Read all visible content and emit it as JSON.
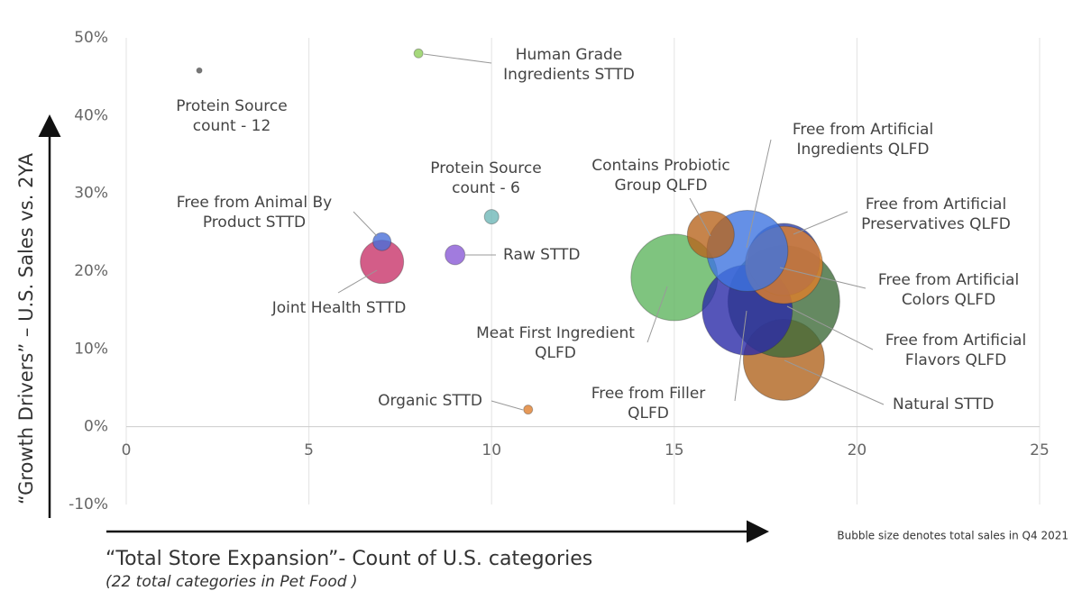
{
  "chart_data": {
    "type": "bubble",
    "y_label": "“Growth Drivers” – U.S. Sales vs. 2YA",
    "x_label": "“Total Store Expansion”- Count of U.S. categories",
    "subtitle": "(22 total categories in Pet Food )",
    "note": "Bubble size denotes total sales in Q4 2021",
    "xlim": [
      0,
      25
    ],
    "xticks": [
      0,
      5,
      10,
      15,
      20,
      25
    ],
    "ylim": [
      -10,
      50
    ],
    "yticks": [
      {
        "value": -10,
        "label": "-10%"
      },
      {
        "value": 0,
        "label": "0%"
      },
      {
        "value": 10,
        "label": "10%"
      },
      {
        "value": 20,
        "label": "20%"
      },
      {
        "value": 30,
        "label": "30%"
      },
      {
        "value": 40,
        "label": "40%"
      },
      {
        "value": 50,
        "label": "50%"
      }
    ],
    "grid": true,
    "points": [
      {
        "label": [
          "Meat First Ingredient",
          "QLFD"
        ],
        "x": 15,
        "y": 19.2,
        "size": 48,
        "color": "#5fb55f"
      },
      {
        "label": [
          "Natural STTD"
        ],
        "x": 18,
        "y": 8.6,
        "size": 45,
        "color": "#b0641e"
      },
      {
        "label": [
          "Free from Artificial",
          "Flavors QLFD"
        ],
        "x": 18,
        "y": 16.1,
        "size": 62,
        "color": "#3e6b3a"
      },
      {
        "label": [
          "Free from Filler",
          "QLFD"
        ],
        "x": 17,
        "y": 15,
        "size": 50,
        "color": "#2a2aa8"
      },
      {
        "label": [
          "Free from Artificial",
          "Colors QLFD"
        ],
        "x": 18,
        "y": 21.5,
        "size": 40,
        "color": "#2c3fa8"
      },
      {
        "label": [
          "Free from Artificial",
          "Preservatives QLFD"
        ],
        "x": 18,
        "y": 20.8,
        "size": 43,
        "color": "#e07f2a"
      },
      {
        "label": [
          "Free from Artificial",
          "Ingredients QLFD"
        ],
        "x": 17,
        "y": 22.6,
        "size": 45,
        "color": "#3f74e0"
      },
      {
        "label": [
          "Contains Probiotic",
          "Group QLFD"
        ],
        "x": 16,
        "y": 24.7,
        "size": 26,
        "color": "#b8651e"
      },
      {
        "label": [
          "Joint Health STTD"
        ],
        "x": 7,
        "y": 21.2,
        "size": 24,
        "color": "#c8356a"
      },
      {
        "label": [
          "Raw STTD"
        ],
        "x": 9,
        "y": 22.1,
        "size": 11,
        "color": "#8a5ad6"
      },
      {
        "label": [
          "Free from Animal By",
          "Product STTD"
        ],
        "x": 7,
        "y": 23.8,
        "size": 10,
        "color": "#4a6fd8"
      },
      {
        "label": [
          "Protein Source",
          "count - 6"
        ],
        "x": 10,
        "y": 27,
        "size": 8,
        "color": "#6fb8b8"
      },
      {
        "label": [
          "Human Grade",
          "Ingredients STTD"
        ],
        "x": 8,
        "y": 48,
        "size": 5,
        "color": "#8fce5a"
      },
      {
        "label": [
          "Organic STTD"
        ],
        "x": 11,
        "y": 2.2,
        "size": 5,
        "color": "#e0802e"
      },
      {
        "label": [
          "Protein Source",
          "count - 12"
        ],
        "x": 2,
        "y": 45.8,
        "size": 3,
        "color": "#555555"
      }
    ]
  }
}
